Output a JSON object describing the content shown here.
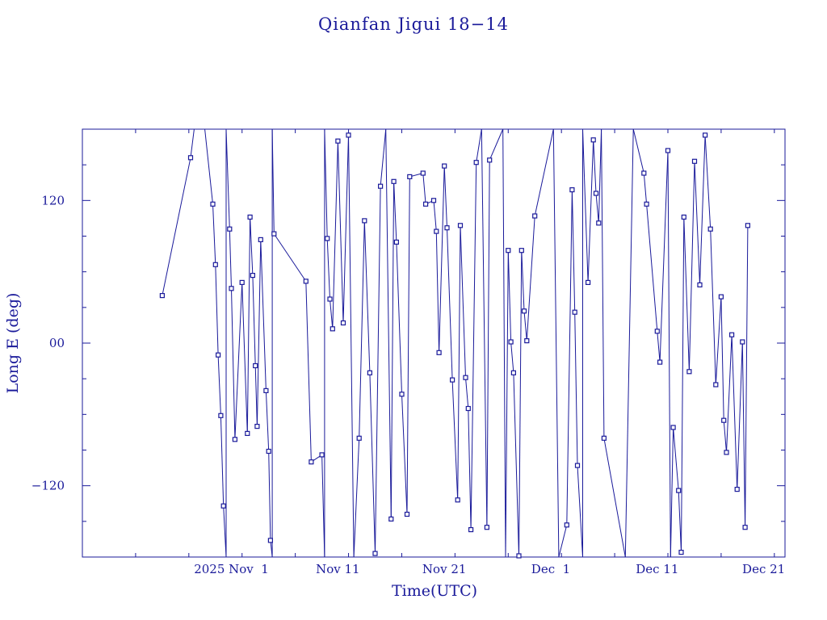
{
  "chart_data": {
    "type": "line",
    "title": "Qianfan Jigui 18−14",
    "xlabel": "Time(UTC)",
    "ylabel": "Long E (deg)",
    "x_ticks": [
      "2025 Nov  1",
      "Nov 11",
      "Nov 21",
      "Dec  1",
      "Dec 11",
      "Dec 21"
    ],
    "x_tick_dates": [
      "2025-11-01",
      "2025-11-11",
      "2025-11-21",
      "2025-12-01",
      "2025-12-11",
      "2025-12-21"
    ],
    "y_ticks": [
      120,
      0,
      -120
    ],
    "y_tick_labels": [
      "120",
      "00",
      "−120"
    ],
    "xlim": [
      "2025-10-18",
      "2025-12-23"
    ],
    "ylim": [
      -180,
      180
    ],
    "grid": false,
    "colors": {
      "line": "#1a1a9a",
      "marker": "#1a1a9a",
      "axes": "#1a1a9a",
      "text": "#1a1a9a"
    },
    "series": [
      {
        "points": [
          [
            "2025-10-25T12:00",
            40
          ],
          [
            "2025-10-28T04:00",
            156
          ],
          [
            "2025-10-28T12:00",
            180
          ],
          [
            "2025-10-29T12:00",
            180
          ],
          [
            "2025-10-30T06:00",
            117
          ],
          [
            "2025-10-30T12:00",
            66
          ],
          [
            "2025-10-30T18:00",
            -10
          ],
          [
            "2025-10-31T00:00",
            -61
          ],
          [
            "2025-10-31T06:00",
            -137
          ],
          [
            "2025-10-31T12:00",
            -180
          ],
          [
            "2025-10-31T12:00",
            180
          ],
          [
            "2025-10-31T20:00",
            96
          ],
          [
            "2025-11-01T00:00",
            46
          ],
          [
            "2025-11-01T08:00",
            -81
          ],
          [
            "2025-11-02T00:00",
            51
          ],
          [
            "2025-11-02T12:00",
            -76
          ],
          [
            "2025-11-02T18:00",
            106
          ],
          [
            "2025-11-03T00:00",
            57
          ],
          [
            "2025-11-03T06:00",
            -19
          ],
          [
            "2025-11-03T10:00",
            -70
          ],
          [
            "2025-11-03T18:00",
            87
          ],
          [
            "2025-11-04T06:00",
            -40
          ],
          [
            "2025-11-04T12:00",
            -91
          ],
          [
            "2025-11-04T16:00",
            -166
          ],
          [
            "2025-11-04T20:00",
            -180
          ],
          [
            "2025-11-04T20:00",
            180
          ],
          [
            "2025-11-05T00:00",
            92
          ],
          [
            "2025-11-08T00:00",
            52
          ],
          [
            "2025-11-08T12:00",
            -100
          ],
          [
            "2025-11-09T12:00",
            -94
          ],
          [
            "2025-11-09T18:00",
            -180
          ],
          [
            "2025-11-09T18:00",
            180
          ],
          [
            "2025-11-10T00:00",
            88
          ],
          [
            "2025-11-10T06:00",
            37
          ],
          [
            "2025-11-10T12:00",
            12
          ],
          [
            "2025-11-11T00:00",
            170
          ],
          [
            "2025-11-11T12:00",
            17
          ],
          [
            "2025-11-12T00:00",
            175
          ],
          [
            "2025-11-12T12:00",
            -180
          ],
          [
            "2025-11-13T00:00",
            -80
          ],
          [
            "2025-11-13T12:00",
            103
          ],
          [
            "2025-11-14T00:00",
            -25
          ],
          [
            "2025-11-14T12:00",
            -177
          ],
          [
            "2025-11-15T00:00",
            132
          ],
          [
            "2025-11-15T12:00",
            180
          ],
          [
            "2025-11-16T00:00",
            -148
          ],
          [
            "2025-11-16T06:00",
            136
          ],
          [
            "2025-11-16T12:00",
            85
          ],
          [
            "2025-11-17T00:00",
            -43
          ],
          [
            "2025-11-17T12:00",
            -144
          ],
          [
            "2025-11-17T18:00",
            140
          ],
          [
            "2025-11-19T00:00",
            143
          ],
          [
            "2025-11-19T06:00",
            117
          ],
          [
            "2025-11-20T00:00",
            120
          ],
          [
            "2025-11-20T06:00",
            94
          ],
          [
            "2025-11-20T12:00",
            -8
          ],
          [
            "2025-11-21T00:00",
            149
          ],
          [
            "2025-11-21T06:00",
            97
          ],
          [
            "2025-11-21T18:00",
            -31
          ],
          [
            "2025-11-22T06:00",
            -132
          ],
          [
            "2025-11-22T12:00",
            99
          ],
          [
            "2025-11-23T00:00",
            -29
          ],
          [
            "2025-11-23T06:00",
            -55
          ],
          [
            "2025-11-23T12:00",
            -157
          ],
          [
            "2025-11-24T00:00",
            152
          ],
          [
            "2025-11-24T12:00",
            180
          ],
          [
            "2025-11-25T00:00",
            -155
          ],
          [
            "2025-11-25T06:00",
            154
          ],
          [
            "2025-11-26T12:00",
            180
          ],
          [
            "2025-11-26T18:00",
            -180
          ],
          [
            "2025-11-27T00:00",
            78
          ],
          [
            "2025-11-27T06:00",
            1
          ],
          [
            "2025-11-27T12:00",
            -25
          ],
          [
            "2025-11-28T00:00",
            -179
          ],
          [
            "2025-11-28T06:00",
            78
          ],
          [
            "2025-11-28T12:00",
            27
          ],
          [
            "2025-11-28T18:00",
            2
          ],
          [
            "2025-11-29T12:00",
            107
          ],
          [
            "2025-12-01T06:00",
            180
          ],
          [
            "2025-12-01T18:00",
            -180
          ],
          [
            "2025-12-02T12:00",
            -153
          ],
          [
            "2025-12-03T00:00",
            129
          ],
          [
            "2025-12-03T06:00",
            26
          ],
          [
            "2025-12-03T12:00",
            -103
          ],
          [
            "2025-12-04T00:00",
            -180
          ],
          [
            "2025-12-04T00:00",
            180
          ],
          [
            "2025-12-04T12:00",
            51
          ],
          [
            "2025-12-05T00:00",
            171
          ],
          [
            "2025-12-05T06:00",
            126
          ],
          [
            "2025-12-05T12:00",
            101
          ],
          [
            "2025-12-05T18:00",
            180
          ],
          [
            "2025-12-06T00:00",
            -80
          ],
          [
            "2025-12-08T00:00",
            -180
          ],
          [
            "2025-12-08T18:00",
            180
          ],
          [
            "2025-12-09T18:00",
            143
          ],
          [
            "2025-12-10T00:00",
            117
          ],
          [
            "2025-12-11T00:00",
            10
          ],
          [
            "2025-12-11T06:00",
            -16
          ],
          [
            "2025-12-12T00:00",
            162
          ],
          [
            "2025-12-12T06:00",
            -180
          ],
          [
            "2025-12-12T12:00",
            -71
          ],
          [
            "2025-12-13T00:00",
            -124
          ],
          [
            "2025-12-13T06:00",
            -176
          ],
          [
            "2025-12-13T12:00",
            106
          ],
          [
            "2025-12-14T00:00",
            -24
          ],
          [
            "2025-12-14T12:00",
            153
          ],
          [
            "2025-12-15T00:00",
            49
          ],
          [
            "2025-12-15T12:00",
            175
          ],
          [
            "2025-12-16T00:00",
            96
          ],
          [
            "2025-12-16T12:00",
            -35
          ],
          [
            "2025-12-17T00:00",
            39
          ],
          [
            "2025-12-17T06:00",
            -65
          ],
          [
            "2025-12-17T12:00",
            -92
          ],
          [
            "2025-12-18T00:00",
            7
          ],
          [
            "2025-12-18T12:00",
            -123
          ],
          [
            "2025-12-19T00:00",
            1
          ],
          [
            "2025-12-19T06:00",
            -155
          ],
          [
            "2025-12-19T12:00",
            99
          ]
        ]
      }
    ]
  }
}
